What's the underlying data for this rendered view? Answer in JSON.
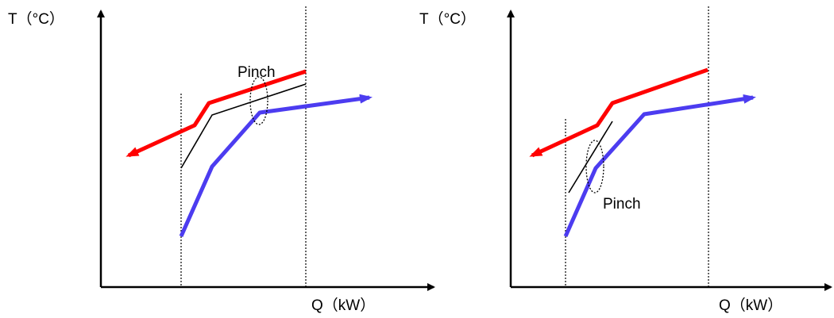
{
  "diagrams": [
    {
      "y_axis_label": "T（°C）",
      "x_axis_label": "Q（kW）",
      "pinch_label": "Pinch"
    },
    {
      "y_axis_label": "T（°C）",
      "x_axis_label": "Q（kW）",
      "pinch_label": "Pinch"
    }
  ],
  "colors": {
    "hot_stream": "#ff0000",
    "cold_stream": "#4c3cf0",
    "axis": "#000000",
    "guide": "#000000"
  }
}
